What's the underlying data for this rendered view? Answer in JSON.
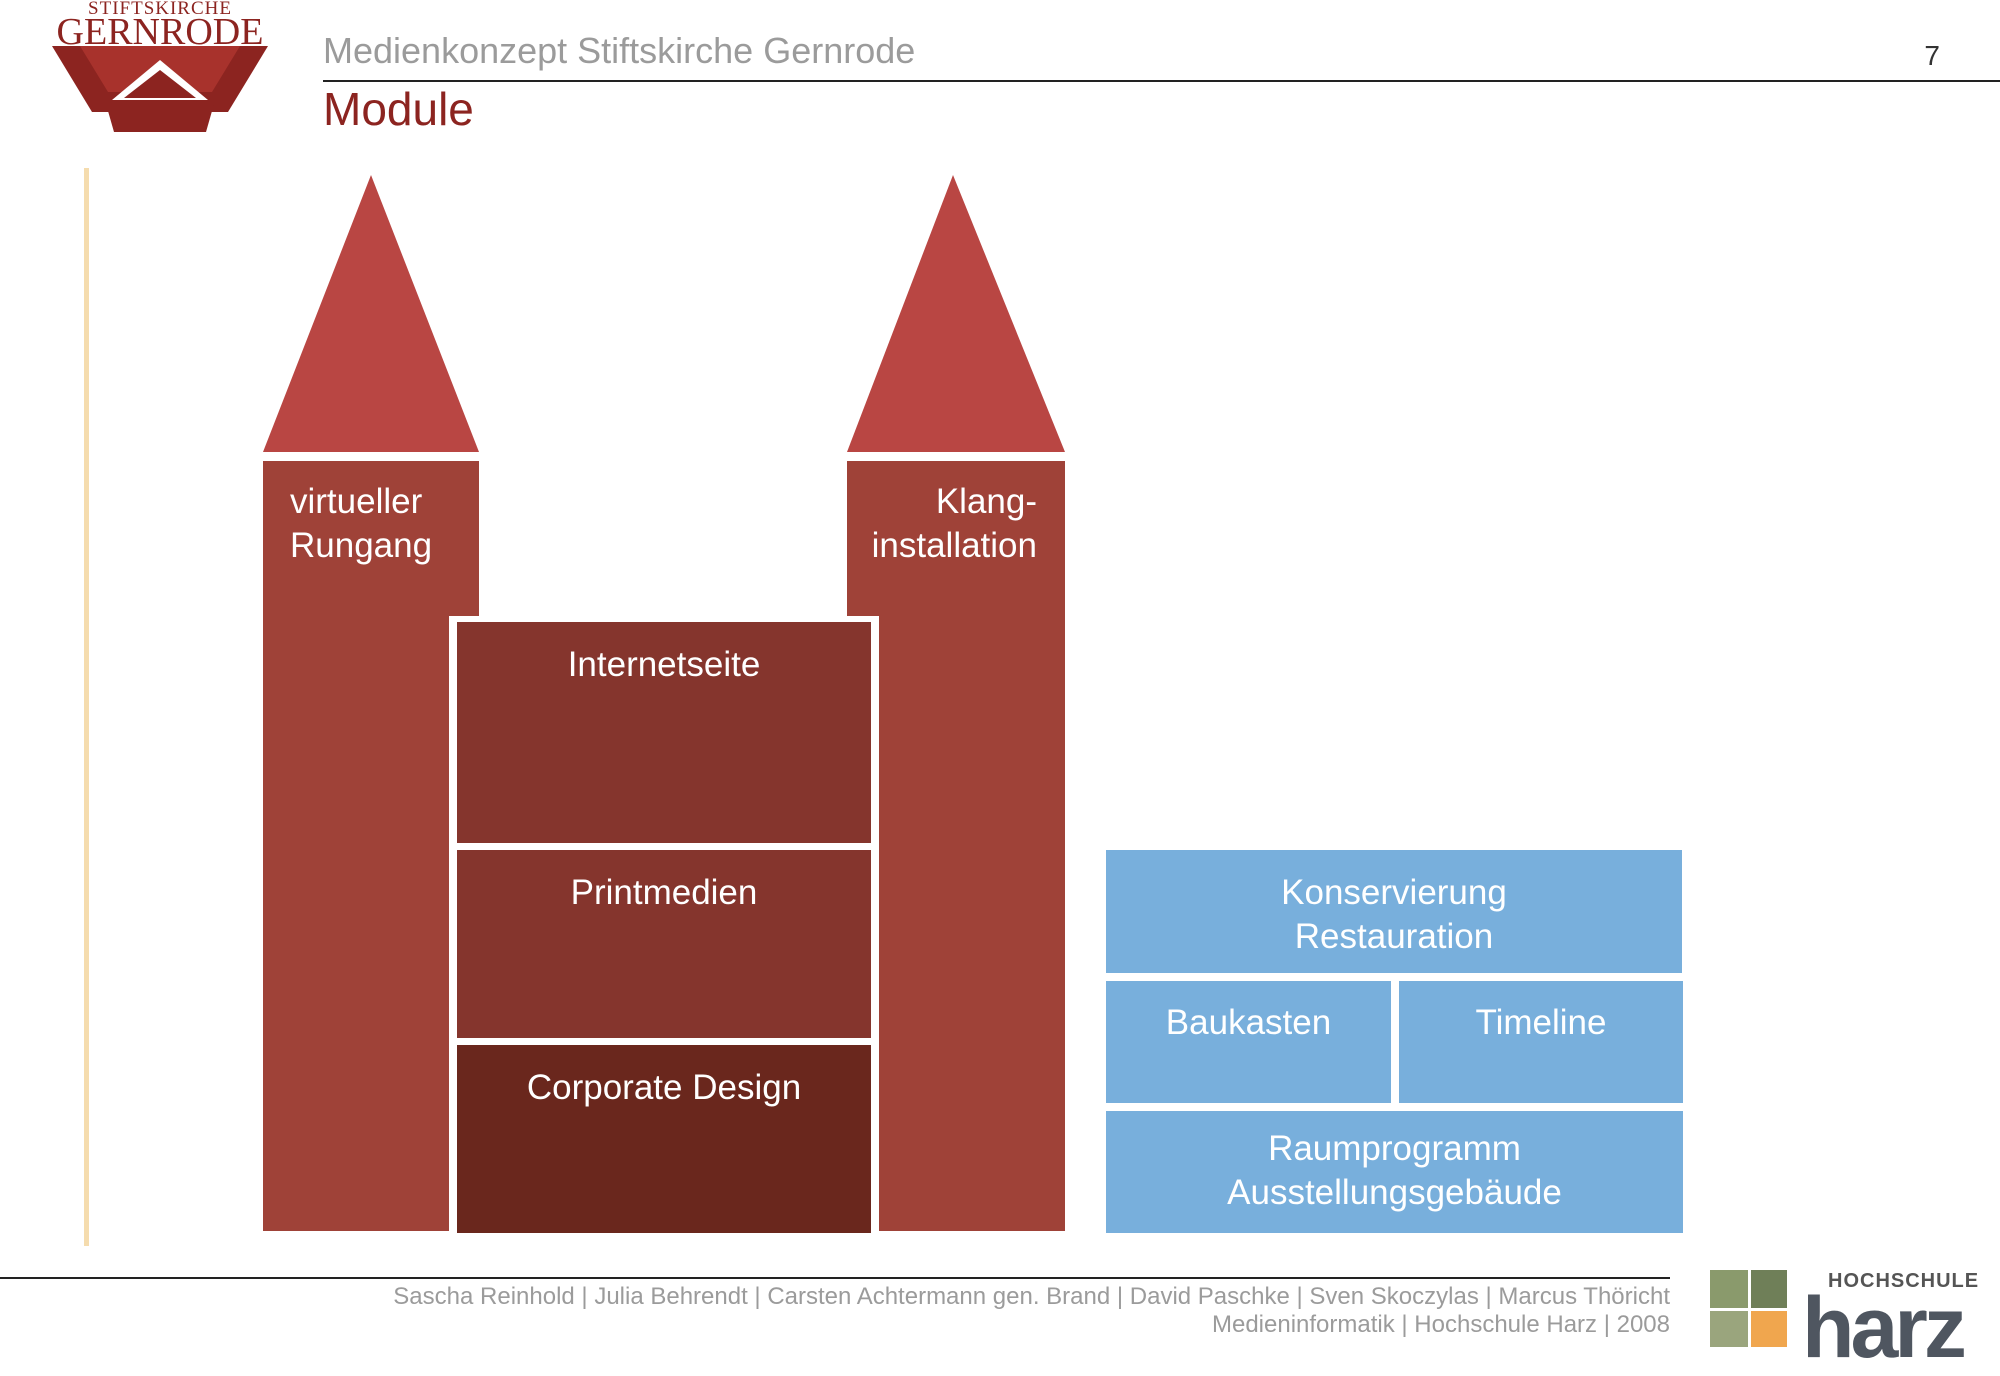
{
  "logo": {
    "line1": "STIFTSKIRCHE",
    "line2": "GERNRODE",
    "color": "#8c2420"
  },
  "header": {
    "subtitle": "Medienkonzept Stiftskirche Gernrode",
    "title": "Module",
    "page_number": "7"
  },
  "diagram": {
    "towers": [
      {
        "id": "left",
        "line1": "virtueller",
        "line2": "Rungang"
      },
      {
        "id": "right",
        "line1": "Klang-",
        "line2": "installation"
      }
    ],
    "nave": [
      {
        "label": "Internetseite"
      },
      {
        "label": "Printmedien"
      },
      {
        "label": "Corporate Design"
      }
    ],
    "blue_blocks": {
      "top_line1": "Konservierung",
      "top_line2": "Restauration",
      "mid_left": "Baukasten",
      "mid_right": "Timeline",
      "bottom_line1": "Raumprogramm",
      "bottom_line2": "Ausstellungsgebäude"
    },
    "colors": {
      "roof": "#b94643",
      "tower": "#9f4238",
      "nave": "#85352d",
      "nave_dark": "#6a271d",
      "blue": "#78afdc"
    }
  },
  "footer": {
    "authors": "Sascha Reinhold | Julia Behrendt | Carsten Achtermann gen. Brand | David Paschke | Sven Skoczylas | Marcus Thöricht",
    "institution": "Medieninformatik | Hochschule Harz | 2008",
    "harz_small": "HOCHSCHULE",
    "harz_big": "harz"
  }
}
